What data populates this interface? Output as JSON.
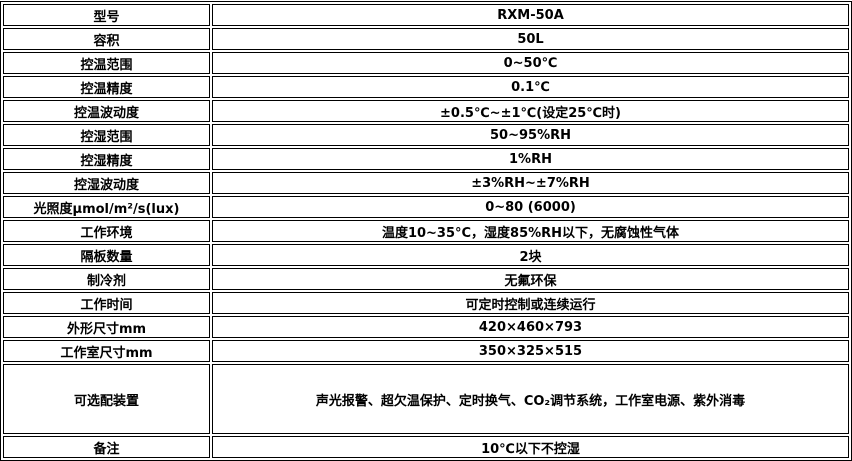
{
  "rows": [
    {
      "label": "型号",
      "value": "RXM-50A"
    },
    {
      "label": "容积",
      "value": "50L"
    },
    {
      "label": "控温范围",
      "value": "0~50℃"
    },
    {
      "label": "控温精度",
      "value": "0.1℃"
    },
    {
      "label": "控温波动度",
      "value": "±0.5℃~±1℃(设定25℃时)"
    },
    {
      "label": "控湿范围",
      "value": "50~95%RH"
    },
    {
      "label": "控湿精度",
      "value": "1%RH"
    },
    {
      "label": "控湿波动度",
      "value": "±3%RH~±7%RH"
    },
    {
      "label": "光照度μmol/m²/s(lux)",
      "value": "0~80 (6000)"
    },
    {
      "label": "工作环境",
      "value": "温度10~35°C，湿度85%RH以下，无腐蚀性气体"
    },
    {
      "label": "隔板数量",
      "value": "2块"
    },
    {
      "label": "制冷剂",
      "value": "无氟环保"
    },
    {
      "label": "工作时间",
      "value": "可定时控制或连续运行"
    },
    {
      "label": "外形尺寸mm",
      "value": "420×460×793"
    },
    {
      "label": "工作室尺寸mm",
      "value": "350×325×515"
    },
    {
      "label": "可选配装置",
      "value": "声光报警、超欠温保护、定时换气、CO₂调节系统，工作室电源、紫外消毒"
    },
    {
      "label": "备注",
      "value": "10℃以下不控湿"
    }
  ]
}
